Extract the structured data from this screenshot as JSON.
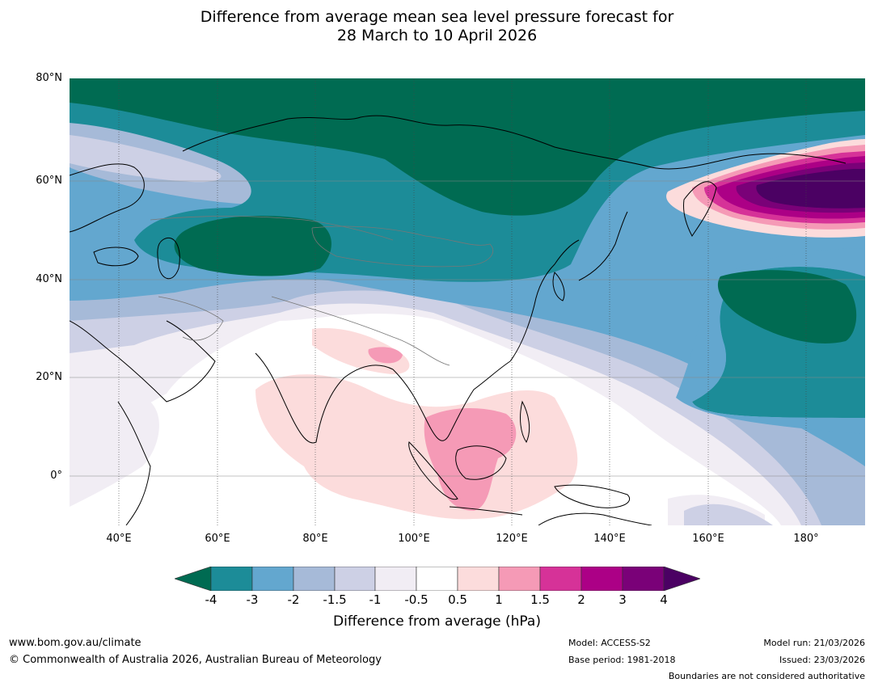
{
  "title": {
    "line1": "Difference from average mean sea level pressure forecast for",
    "line2": "28 March to 10 April 2026"
  },
  "map": {
    "lat_labels": [
      "80°N",
      "60°N",
      "40°N",
      "20°N",
      "0°"
    ],
    "lon_labels": [
      "40°E",
      "60°E",
      "80°E",
      "100°E",
      "120°E",
      "140°E",
      "160°E",
      "180°"
    ]
  },
  "colorbar": {
    "title": "Difference from average (hPa)",
    "ticks": [
      "-4",
      "-3",
      "-2",
      "-1.5",
      "-1",
      "-0.5",
      "0.5",
      "1",
      "1.5",
      "2",
      "3",
      "4"
    ],
    "colors": {
      "lt_neg4": "#006b52",
      "neg4_neg3": "#1c8c98",
      "neg3_neg2": "#63a7cf",
      "neg2_neg15": "#a6bad8",
      "neg15_neg1": "#cdd0e5",
      "neg1_neg05": "#f1edf4",
      "neg05_05": "#ffffff",
      "p05_1": "#fcdcdc",
      "p1_15": "#f59ab6",
      "p15_2": "#d63298",
      "p2_3": "#ac0086",
      "p3_4": "#7a0178",
      "gt_4": "#4b0163"
    }
  },
  "footer": {
    "website": "www.bom.gov.au/climate",
    "copyright": "© Commonwealth of Australia 2026, Australian Bureau of Meteorology",
    "model": "Model: ACCESS-S2",
    "base_period": "Base period: 1981-2018",
    "model_run": "Model run: 21/03/2026",
    "issued": "Issued: 23/03/2026",
    "disclaimer": "Boundaries are not considered authoritative"
  }
}
